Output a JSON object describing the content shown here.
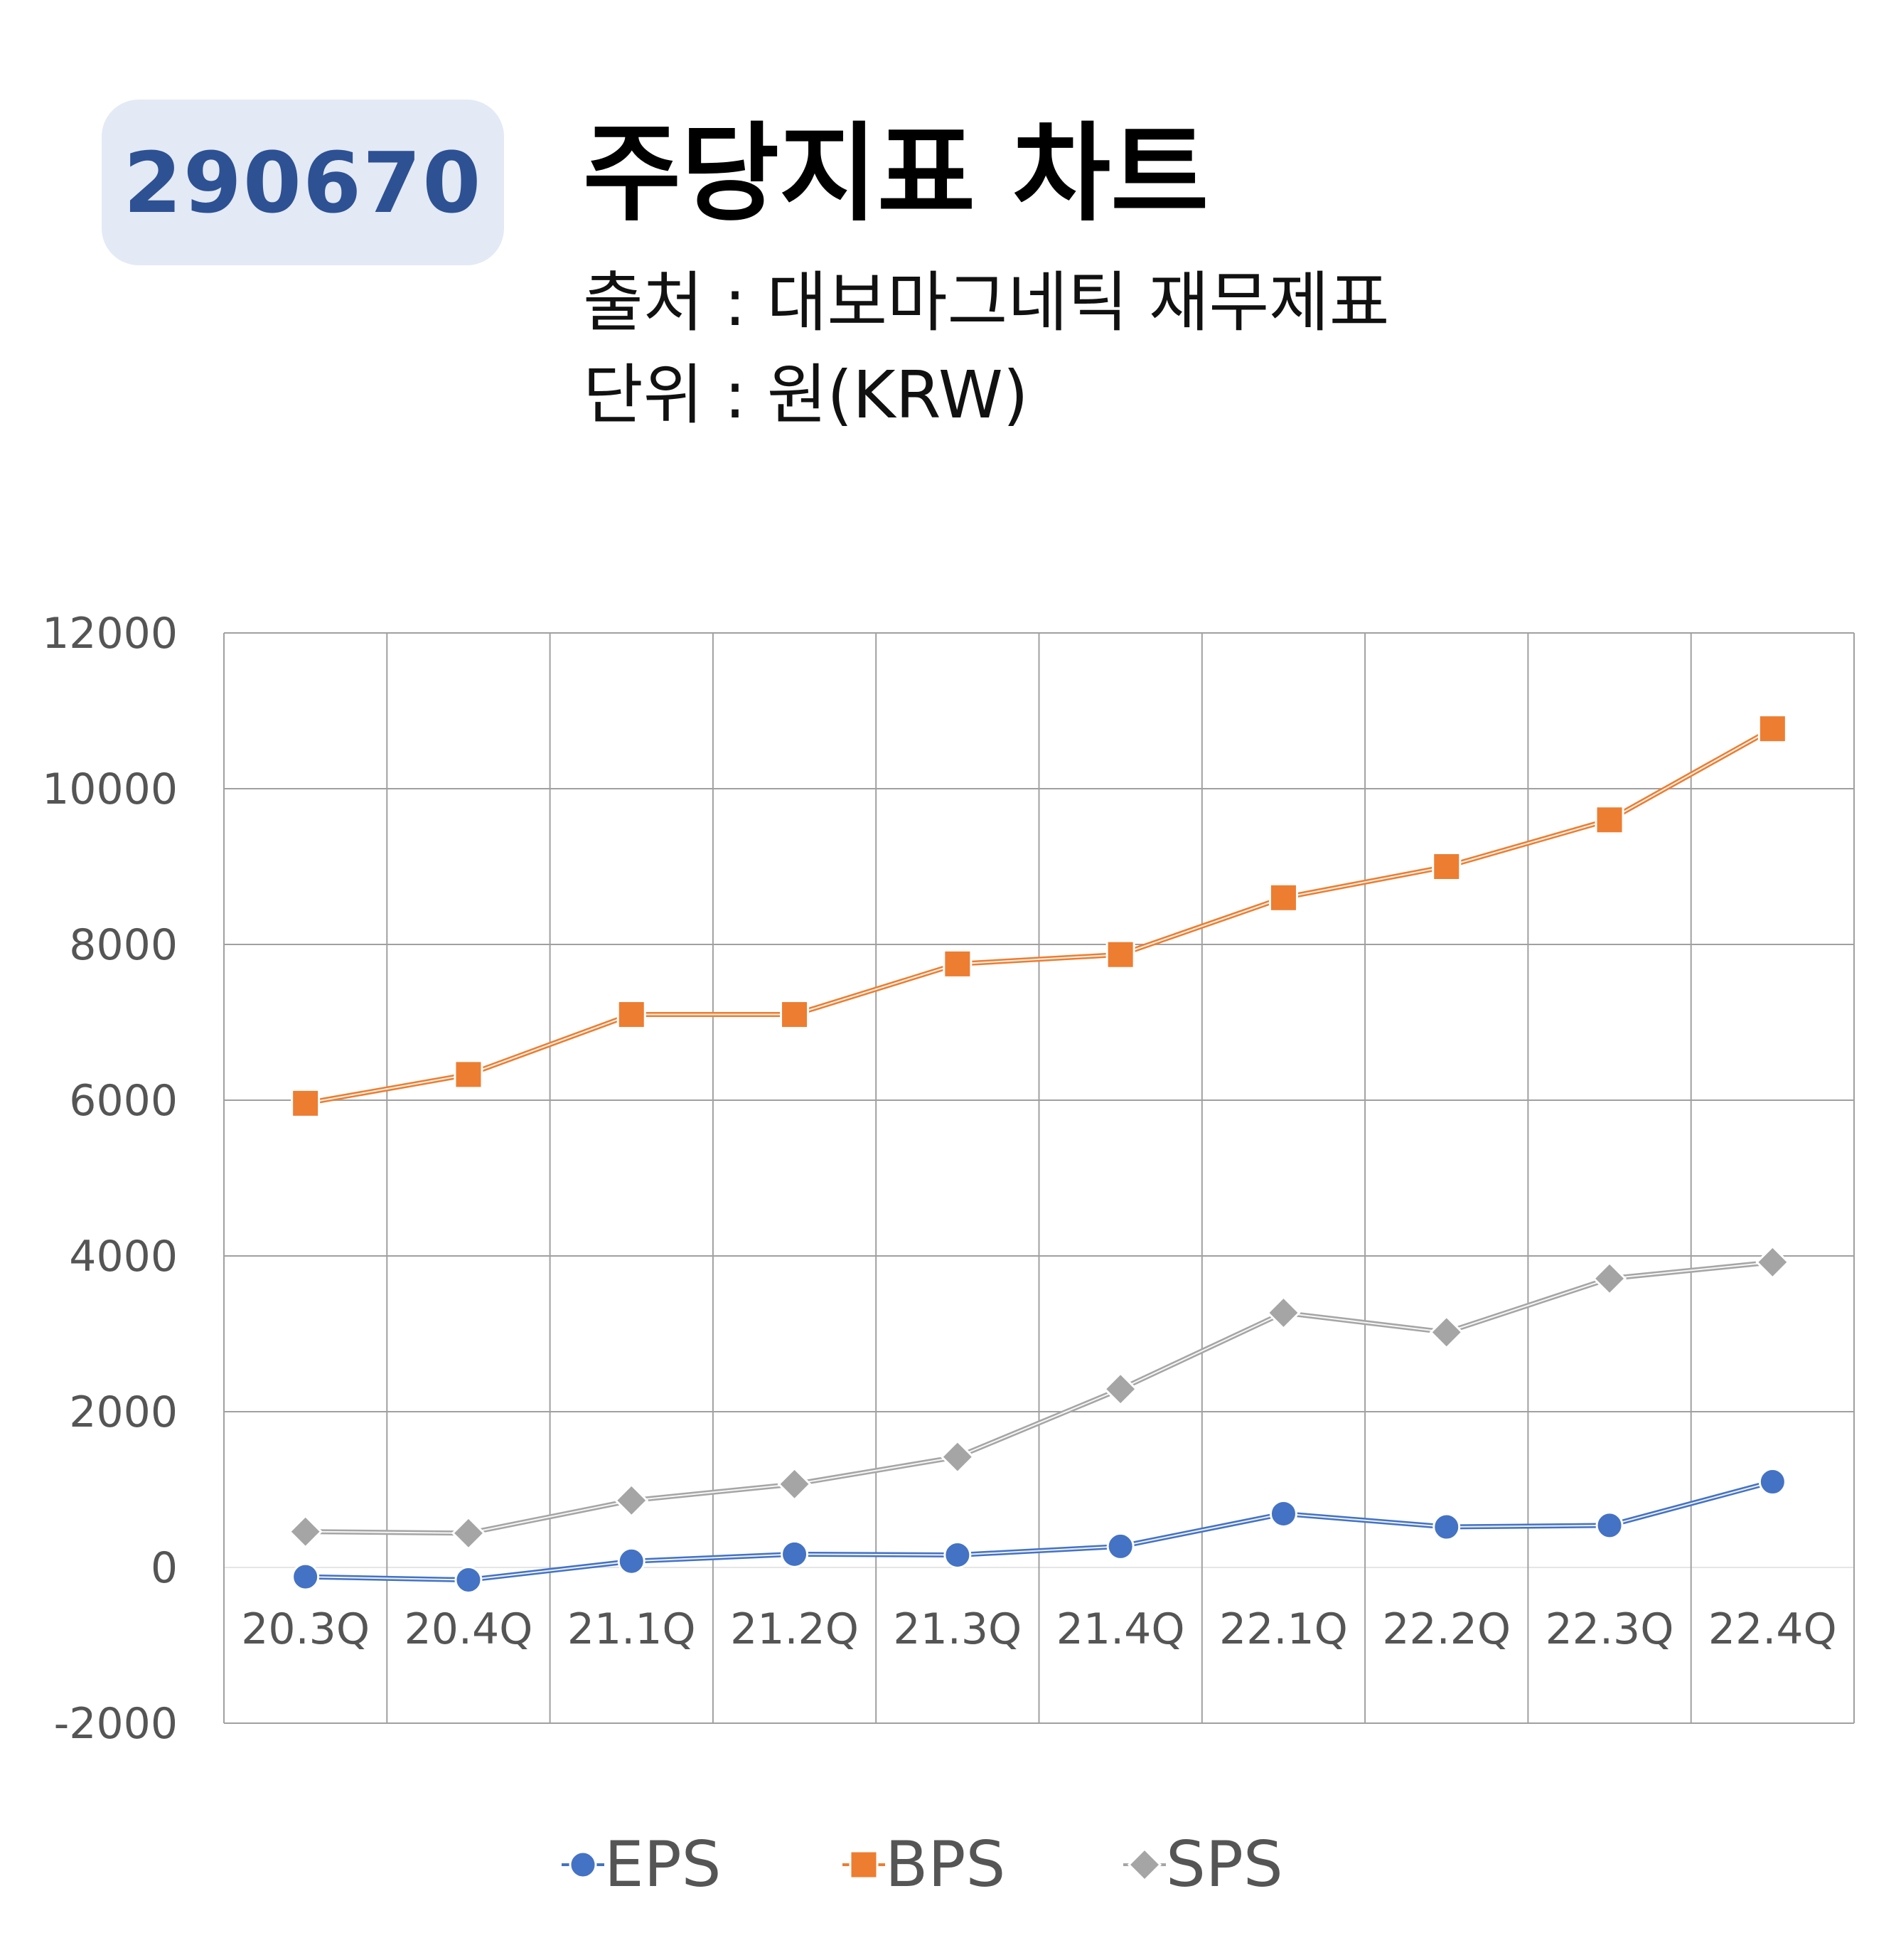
{
  "header": {
    "code": "290670",
    "title": "주당지표 차트",
    "source": "출처 : 대보마그네틱 재무제표",
    "unit": "단위 : 원(KRW)"
  },
  "chart_data": {
    "type": "line",
    "categories": [
      "20.3Q",
      "20.4Q",
      "21.1Q",
      "21.2Q",
      "21.3Q",
      "21.4Q",
      "22.1Q",
      "22.2Q",
      "22.3Q",
      "22.4Q"
    ],
    "series": [
      {
        "name": "EPS",
        "color": "#4472c4",
        "marker": "circle",
        "values": [
          -120,
          -160,
          80,
          170,
          160,
          270,
          690,
          520,
          540,
          1100
        ]
      },
      {
        "name": "BPS",
        "color": "#ed7d31",
        "marker": "square",
        "values": [
          5960,
          6330,
          7100,
          7100,
          7750,
          7870,
          8600,
          9000,
          9600,
          10770
        ]
      },
      {
        "name": "SPS",
        "color": "#a5a5a5",
        "marker": "diamond",
        "values": [
          460,
          440,
          860,
          1070,
          1420,
          2290,
          3270,
          3020,
          3710,
          3920
        ]
      }
    ],
    "ylim": [
      -2000,
      12000
    ],
    "yticks": [
      "12000",
      "10000",
      "8000",
      "6000",
      "4000",
      "2000",
      "0",
      "-2000"
    ],
    "grid": true,
    "legend": "bottom"
  }
}
